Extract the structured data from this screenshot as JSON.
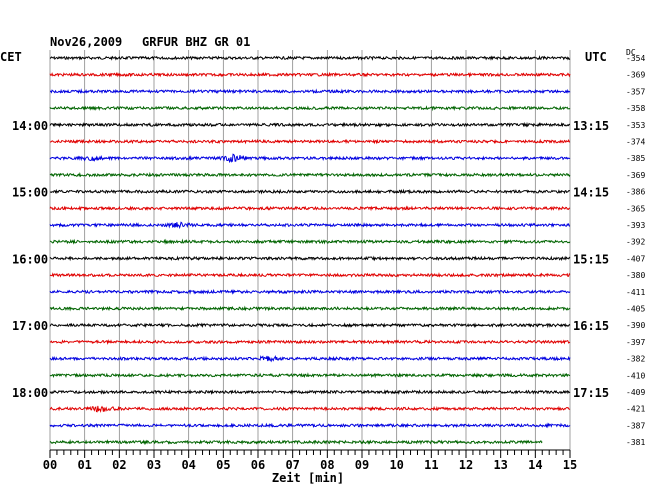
{
  "header": {
    "date": "Nov26,2009",
    "station": "GRFUR BHZ GR 01",
    "left_zone": "CET",
    "right_zone": "UTC",
    "dc_label": "DC"
  },
  "chart_data": {
    "type": "line",
    "title": "Nov26,2009   GRFUR BHZ GR 01",
    "xlabel": "Zeit [min]",
    "xlim": [
      0,
      15
    ],
    "x_ticks": [
      "00",
      "01",
      "02",
      "03",
      "04",
      "05",
      "06",
      "07",
      "08",
      "09",
      "10",
      "11",
      "12",
      "13",
      "14",
      "15"
    ],
    "grid": true,
    "trace_colors": [
      "#000000",
      "#e00000",
      "#0000e0",
      "#006400"
    ],
    "traces_per_hour": 4,
    "trace_count": 24,
    "cet_labels": [
      {
        "trace": 4,
        "text": "14:00"
      },
      {
        "trace": 8,
        "text": "15:00"
      },
      {
        "trace": 12,
        "text": "16:00"
      },
      {
        "trace": 16,
        "text": "17:00"
      },
      {
        "trace": 20,
        "text": "18:00"
      }
    ],
    "utc_labels": [
      {
        "trace": 4,
        "text": "13:15"
      },
      {
        "trace": 8,
        "text": "14:15"
      },
      {
        "trace": 12,
        "text": "15:15"
      },
      {
        "trace": 16,
        "text": "16:15"
      },
      {
        "trace": 20,
        "text": "17:15"
      }
    ],
    "dc_offsets": [
      "-354",
      "-369",
      "-357",
      "-358",
      "-353",
      "-374",
      "-385",
      "-369",
      "-386",
      "-365",
      "-393",
      "-392",
      "-407",
      "-380",
      "-411",
      "-405",
      "-390",
      "-397",
      "-382",
      "-410",
      "-409",
      "-421",
      "-387",
      "-381"
    ],
    "last_trace_end_min": 14.2,
    "events": [
      {
        "trace": 6,
        "min": 5.3,
        "amp": 3
      },
      {
        "trace": 6,
        "min": 1.2,
        "amp": 1.6
      },
      {
        "trace": 10,
        "min": 3.7,
        "amp": 1.8
      },
      {
        "trace": 18,
        "min": 6.3,
        "amp": 1.8
      },
      {
        "trace": 21,
        "min": 1.5,
        "amp": 2.4
      }
    ]
  }
}
